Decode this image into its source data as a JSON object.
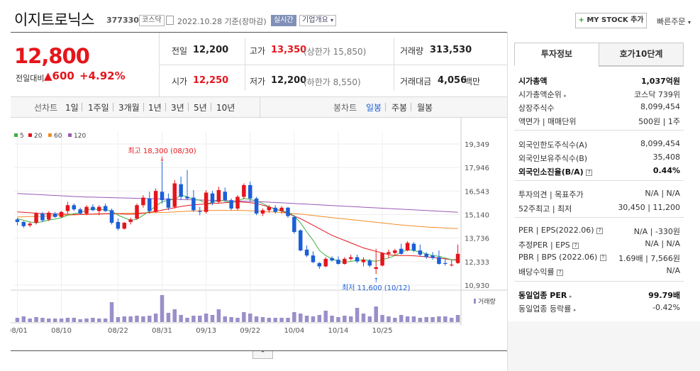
{
  "header": {
    "title": "이지트로닉스",
    "code": "377330",
    "market": "코스닥",
    "date": "2022.10.28 기준(장마감)",
    "realtime": "실시간",
    "overview": "기업개요",
    "mystock": "MY STOCK 추가",
    "quick_order": "빠른주문"
  },
  "price": {
    "current": "12,800",
    "prev_label": "전일대비",
    "change": "▲600",
    "change_pct": "+4.92%",
    "prev_close_label": "전일",
    "prev_close": "12,200",
    "high_label": "고가",
    "high": "13,350",
    "upper_limit": "(상한가 15,850)",
    "volume_label": "거래량",
    "volume": "313,530",
    "open_label": "시가",
    "open": "12,250",
    "low_label": "저가",
    "low": "12,200",
    "lower_limit": "(하한가 8,550)",
    "amount_label": "거래대금",
    "amount": "4,056",
    "amount_unit": "백만"
  },
  "period_bar": {
    "line_chart": "선차트",
    "periods": [
      "1일",
      "1주일",
      "3개월",
      "1년",
      "3년",
      "5년",
      "10년"
    ],
    "candle_chart": "봉차트",
    "candles": [
      "일봉",
      "주봉",
      "월봉"
    ],
    "active_candle": "일봉"
  },
  "chart_data": {
    "type": "candlestick",
    "legend": [
      {
        "name": "5",
        "color": "#3cb043"
      },
      {
        "name": "20",
        "color": "#e5151c"
      },
      {
        "name": "60",
        "color": "#f28c28"
      },
      {
        "name": "120",
        "color": "#9b59b6"
      }
    ],
    "y_ticks": [
      "19,349",
      "17,946",
      "16,543",
      "15,140",
      "13,736",
      "12,333",
      "10,930"
    ],
    "ylim": [
      10930,
      19349
    ],
    "x_ticks": [
      {
        "i": 0,
        "label": "08/01"
      },
      {
        "i": 7,
        "label": "08/10"
      },
      {
        "i": 16,
        "label": "08/22"
      },
      {
        "i": 23,
        "label": "08/31"
      },
      {
        "i": 30,
        "label": "09/13"
      },
      {
        "i": 37,
        "label": "09/22"
      },
      {
        "i": 44,
        "label": "10/04"
      },
      {
        "i": 51,
        "label": "10/14"
      },
      {
        "i": 58,
        "label": "10/25"
      }
    ],
    "annotation_high": "최고 18,300 (08/30)",
    "annotation_low": "최저 11,600 (10/12)",
    "volume_label": "거래량",
    "candles": [
      [
        14850,
        14950,
        14500,
        14700
      ],
      [
        14700,
        14750,
        14350,
        14450
      ],
      [
        14500,
        14700,
        14400,
        14600
      ],
      [
        14650,
        15300,
        14550,
        15200
      ],
      [
        15200,
        15300,
        14700,
        14800
      ],
      [
        14850,
        15350,
        14750,
        15250
      ],
      [
        15200,
        15300,
        14950,
        15000
      ],
      [
        15000,
        15350,
        14950,
        15300
      ],
      [
        15350,
        15900,
        15200,
        15700
      ],
      [
        15700,
        15800,
        15350,
        15450
      ],
      [
        15450,
        15550,
        15150,
        15200
      ],
      [
        15200,
        15700,
        15100,
        15600
      ],
      [
        15600,
        15750,
        15350,
        15400
      ],
      [
        15350,
        15700,
        15100,
        15600
      ],
      [
        15650,
        15800,
        15300,
        15350
      ],
      [
        15400,
        15500,
        14550,
        14650
      ],
      [
        14700,
        14900,
        14200,
        14300
      ],
      [
        14300,
        14700,
        14250,
        14650
      ],
      [
        14700,
        14950,
        14550,
        14850
      ],
      [
        14900,
        15800,
        14850,
        15700
      ],
      [
        15700,
        16300,
        15550,
        16150
      ],
      [
        16100,
        16500,
        15200,
        15350
      ],
      [
        15300,
        16700,
        15250,
        16550
      ],
      [
        16500,
        18300,
        15800,
        16000
      ],
      [
        16100,
        16400,
        15400,
        15550
      ],
      [
        15600,
        17200,
        15500,
        17000
      ],
      [
        16950,
        17400,
        16000,
        16200
      ],
      [
        16200,
        17800,
        16000,
        16100
      ],
      [
        16150,
        16600,
        15300,
        15400
      ],
      [
        15350,
        15600,
        15100,
        15300
      ],
      [
        15300,
        16600,
        15200,
        16450
      ],
      [
        16400,
        16550,
        15700,
        15850
      ],
      [
        15900,
        16800,
        15800,
        16600
      ],
      [
        16500,
        16750,
        15900,
        16000
      ],
      [
        16000,
        16100,
        15400,
        15500
      ],
      [
        15500,
        16300,
        15400,
        16200
      ],
      [
        16200,
        17000,
        16050,
        16900
      ],
      [
        16900,
        17100,
        15900,
        16100
      ],
      [
        16100,
        16200,
        15100,
        15200
      ],
      [
        15200,
        15500,
        15050,
        15400
      ],
      [
        15400,
        15700,
        15250,
        15600
      ],
      [
        15550,
        15700,
        15200,
        15300
      ],
      [
        15350,
        15650,
        15200,
        15550
      ],
      [
        15550,
        15600,
        14950,
        15050
      ],
      [
        15000,
        15100,
        14000,
        14100
      ],
      [
        14200,
        14250,
        12950,
        13000
      ],
      [
        13050,
        13300,
        12600,
        12700
      ],
      [
        12700,
        12950,
        12250,
        12300
      ],
      [
        12250,
        12300,
        11900,
        12050
      ],
      [
        12050,
        12600,
        12000,
        12500
      ],
      [
        12550,
        12650,
        12350,
        12400
      ],
      [
        12450,
        12650,
        12150,
        12200
      ],
      [
        12200,
        12600,
        12150,
        12500
      ],
      [
        12500,
        12750,
        12400,
        12600
      ],
      [
        12600,
        12750,
        12250,
        12350
      ],
      [
        12300,
        12600,
        12050,
        12450
      ],
      [
        12400,
        12500,
        12000,
        12100
      ],
      [
        11900,
        13100,
        11600,
        12000
      ],
      [
        12100,
        12900,
        12050,
        12850
      ],
      [
        12800,
        13050,
        12550,
        12900
      ],
      [
        12850,
        13100,
        12700,
        13000
      ],
      [
        13100,
        13400,
        12750,
        12800
      ],
      [
        13000,
        13550,
        12950,
        13450
      ],
      [
        13400,
        13500,
        12900,
        13000
      ],
      [
        13000,
        13350,
        12650,
        12750
      ],
      [
        12800,
        12900,
        12500,
        12600
      ],
      [
        12700,
        12900,
        12450,
        12550
      ],
      [
        12600,
        13000,
        12150,
        12200
      ],
      [
        12250,
        12500,
        12100,
        12200
      ],
      [
        12150,
        12450,
        12050,
        12150
      ],
      [
        12250,
        13350,
        12200,
        12800
      ]
    ],
    "volumes": [
      6,
      8,
      5,
      7,
      6,
      5,
      5,
      5,
      6,
      6,
      4,
      5,
      6,
      5,
      5,
      28,
      7,
      8,
      8,
      9,
      8,
      9,
      12,
      38,
      13,
      18,
      10,
      6,
      9,
      9,
      12,
      10,
      18,
      8,
      7,
      6,
      14,
      12,
      8,
      7,
      6,
      6,
      6,
      6,
      14,
      12,
      9,
      8,
      10,
      16,
      9,
      7,
      9,
      8,
      20,
      12,
      8,
      22,
      10,
      8,
      6,
      10,
      8,
      8,
      6,
      7,
      7,
      8,
      8,
      6,
      10
    ],
    "ma5": [
      14900,
      14800,
      14700,
      14650,
      14720,
      14820,
      14870,
      14950,
      15100,
      15200,
      15250,
      15400,
      15500,
      15420,
      15450,
      15350,
      15100,
      14950,
      14800,
      14850,
      15100,
      15350,
      15650,
      15900,
      16000,
      16050,
      16300,
      16200,
      16050,
      16000,
      15800,
      15850,
      16000,
      15950,
      15850,
      15950,
      16100,
      16050,
      15950,
      15800,
      15600,
      15450,
      15350,
      15300,
      15050,
      14650,
      14100,
      13600,
      13000,
      12700,
      12500,
      12350,
      12300,
      12350,
      12400,
      12450,
      12400,
      12350,
      12450,
      12550,
      12700,
      12900,
      13050,
      13000,
      12900,
      12800,
      12700,
      12650,
      12550,
      12450,
      12400
    ],
    "ma20": [
      15300,
      15280,
      15250,
      15220,
      15200,
      15190,
      15180,
      15170,
      15160,
      15150,
      15150,
      15160,
      15170,
      15180,
      15190,
      15200,
      15190,
      15170,
      15160,
      15180,
      15220,
      15270,
      15330,
      15400,
      15480,
      15550,
      15620,
      15680,
      15720,
      15750,
      15780,
      15800,
      15820,
      15850,
      15880,
      15900,
      15880,
      15850,
      15800,
      15700,
      15600,
      15480,
      15350,
      15200,
      15050,
      14900,
      14700,
      14500,
      14300,
      14100,
      13900,
      13750,
      13600,
      13450,
      13300,
      13150,
      13050,
      12950,
      12850,
      12750,
      12700,
      12700,
      12700,
      12680,
      12650,
      12620,
      12580,
      12540,
      12500,
      12450,
      12450
    ],
    "ma60": [
      15000,
      15010,
      15020,
      15030,
      15040,
      15060,
      15080,
      15100,
      15110,
      15120,
      15140,
      15150,
      15160,
      15170,
      15180,
      15190,
      15200,
      15210,
      15220,
      15230,
      15240,
      15250,
      15260,
      15270,
      15280,
      15300,
      15320,
      15340,
      15360,
      15370,
      15380,
      15390,
      15390,
      15390,
      15390,
      15390,
      15380,
      15370,
      15350,
      15330,
      15310,
      15290,
      15260,
      15230,
      15200,
      15170,
      15130,
      15090,
      15040,
      15000,
      14960,
      14920,
      14880,
      14840,
      14800,
      14760,
      14720,
      14680,
      14640,
      14600,
      14560,
      14520,
      14490,
      14460,
      14430,
      14400,
      14380,
      14360,
      14340,
      14320,
      14300
    ],
    "ma120": [
      16400,
      16380,
      16360,
      16340,
      16320,
      16300,
      16280,
      16260,
      16240,
      16220,
      16200,
      16190,
      16180,
      16170,
      16160,
      16150,
      16140,
      16130,
      16120,
      16110,
      16100,
      16090,
      16080,
      16070,
      16060,
      16050,
      16040,
      16030,
      16020,
      16010,
      16000,
      15990,
      15980,
      15970,
      15960,
      15950,
      15940,
      15930,
      15920,
      15900,
      15880,
      15860,
      15840,
      15820,
      15800,
      15780,
      15760,
      15740,
      15720,
      15700,
      15680,
      15660,
      15640,
      15620,
      15600,
      15580,
      15560,
      15540,
      15520,
      15500,
      15480,
      15460,
      15440,
      15420,
      15400,
      15380,
      15360,
      15340,
      15320,
      15300,
      15280
    ]
  },
  "right_panel": {
    "tab_invest": "투자정보",
    "tab_hoga": "호가10단계",
    "market_cap_label": "시가총액",
    "market_cap": "1,037억원",
    "cap_rank_label": "시가총액순위",
    "cap_rank": "코스닥 739위",
    "shares_label": "상장주식수",
    "shares": "8,099,454",
    "par_label": "액면가 | 매매단위",
    "par": "500원 | 1주",
    "foreign_limit_label": "외국인한도주식수(A)",
    "foreign_limit": "8,099,454",
    "foreign_hold_label": "외국인보유주식수(B)",
    "foreign_hold": "35,408",
    "foreign_rate_label": "외국인소진율(B/A)",
    "foreign_rate": "0.44%",
    "opinion_label": "투자의견 | 목표주가",
    "opinion": "N/A | N/A",
    "week52_label": "52주최고 | 최저",
    "week52": "30,450 | 11,200",
    "per_label": "PER | EPS(2022.06)",
    "per": "N/A | -330원",
    "est_per_label": "추정PER | EPS",
    "est_per": "N/A | N/A",
    "pbr_label": "PBR | BPS (2022.06)",
    "pbr": "1.69배 | 7,566원",
    "div_label": "배당수익률",
    "div": "N/A",
    "industry_per_label": "동일업종 PER",
    "industry_per": "99.79배",
    "industry_rate_label": "동일업종 등락률",
    "industry_rate": "-0.42%"
  }
}
